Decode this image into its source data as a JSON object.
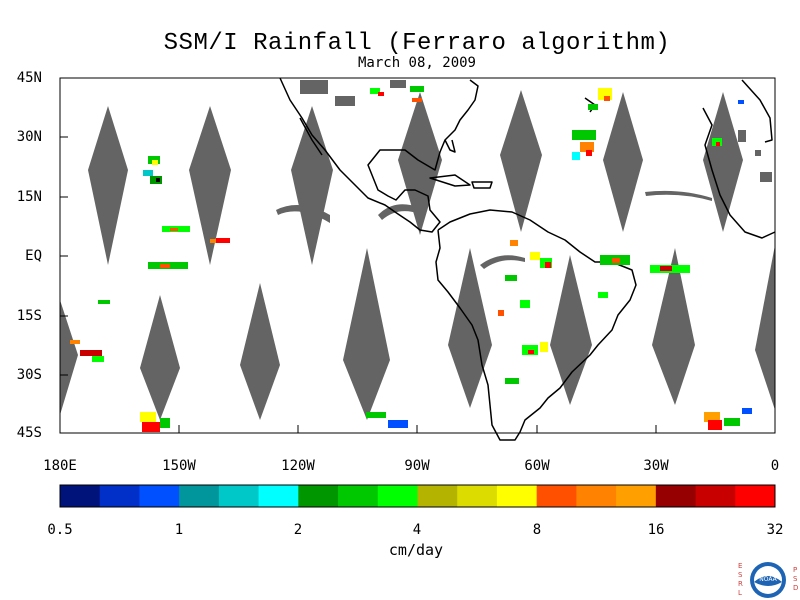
{
  "title": "SSM/I Rainfall (Ferraro algorithm)",
  "date": "March 08, 2009",
  "lat_ticks": [
    "45N",
    "30N",
    "15N",
    "EQ",
    "15S",
    "30S",
    "45S"
  ],
  "lon_ticks": [
    "180E",
    "150W",
    "120W",
    "90W",
    "60W",
    "30W",
    "0"
  ],
  "colorbar": {
    "tick_labels": [
      "0.5",
      "1",
      "2",
      "4",
      "8",
      "16",
      "32"
    ],
    "units": "cm/day",
    "colors": [
      "#00137a",
      "#0030c8",
      "#0050ff",
      "#00969c",
      "#00c8c8",
      "#00ffff",
      "#009600",
      "#00c800",
      "#00ff00",
      "#b4b400",
      "#dcdc00",
      "#ffff00",
      "#ff5000",
      "#ff8200",
      "#ffa000",
      "#960000",
      "#c80000",
      "#ff0000"
    ]
  },
  "logo": {
    "text": "NOAA",
    "left_letters": [
      "E",
      "S",
      "R",
      "L"
    ],
    "right_letters": [
      "P",
      "S",
      "D"
    ]
  },
  "colors": {
    "land": "#ffffff",
    "swath_gap": "#646464",
    "coast": "#000000"
  }
}
